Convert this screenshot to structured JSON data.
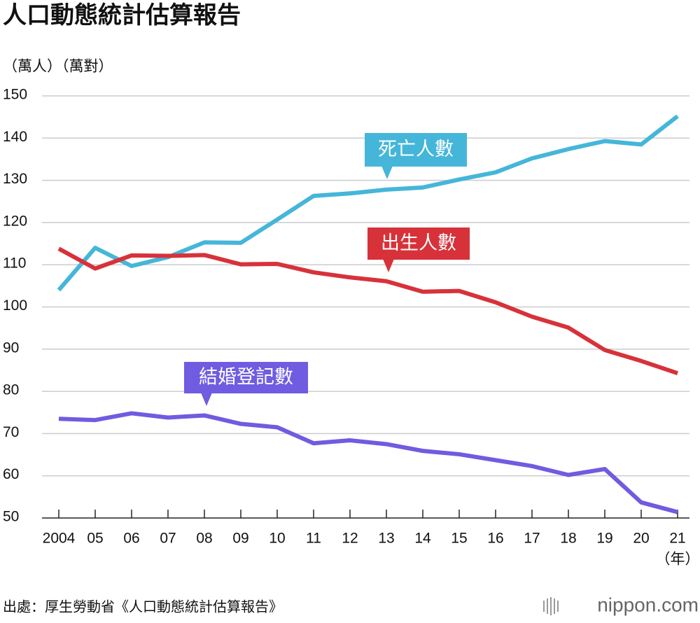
{
  "chart_data": {
    "type": "line",
    "title": "人口動態統計估算報告",
    "y_label": "（萬人）（萬對）",
    "x_label": "（年）",
    "source": "出處：厚生勞動省《人口動態統計估算報告》",
    "logo": "nippon.com",
    "categories": [
      "2004",
      "05",
      "06",
      "07",
      "08",
      "09",
      "10",
      "11",
      "12",
      "13",
      "14",
      "15",
      "16",
      "17",
      "18",
      "19",
      "20",
      "21"
    ],
    "series": [
      {
        "name": "死亡人數",
        "color": "#45b6d9",
        "values": [
          104,
          114,
          109.7,
          111.8,
          115.3,
          115.2,
          120.7,
          126.3,
          126.9,
          127.8,
          128.3,
          130.2,
          131.9,
          135.2,
          137.4,
          139.3,
          138.5,
          145.2
        ]
      },
      {
        "name": "出生人數",
        "color": "#d7323a",
        "values": [
          113.8,
          109.1,
          112.2,
          112.1,
          112.3,
          110.1,
          110.2,
          108.2,
          107.0,
          106.1,
          103.6,
          103.8,
          101.1,
          97.7,
          95.1,
          89.8,
          87.2,
          84.3
        ]
      },
      {
        "name": "結婚登記數",
        "color": "#6f5ce0",
        "values": [
          73.5,
          73.2,
          74.8,
          73.8,
          74.3,
          72.3,
          71.5,
          67.7,
          68.4,
          67.5,
          65.9,
          65.1,
          63.7,
          62.3,
          60.2,
          61.6,
          53.7,
          51.4
        ]
      }
    ],
    "ylim": [
      50,
      150
    ],
    "yticks": [
      50,
      60,
      70,
      80,
      90,
      100,
      110,
      120,
      130,
      140,
      150
    ],
    "grid": true
  }
}
